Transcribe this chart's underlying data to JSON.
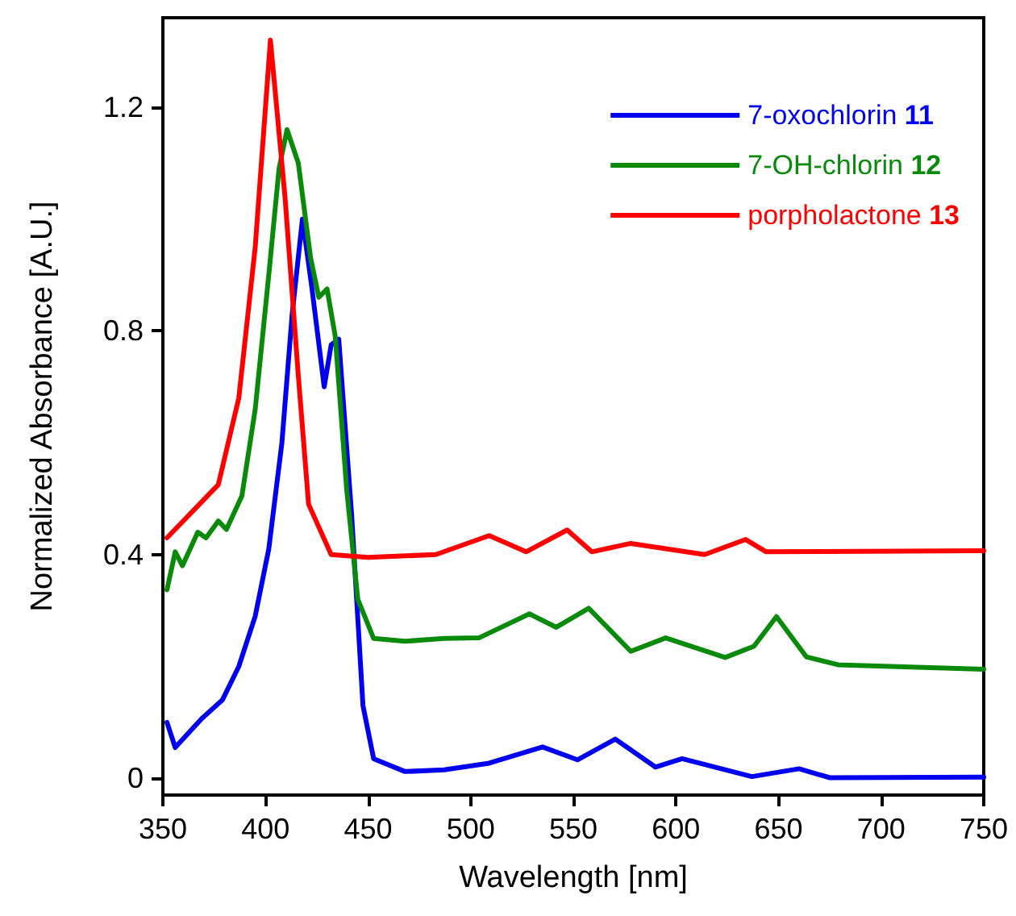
{
  "chart_data": {
    "type": "line",
    "xlabel": "Wavelength [nm]",
    "ylabel": "Normalized Absorbance [A.U.]",
    "xlim": [
      350,
      750
    ],
    "xticks": [
      350,
      400,
      450,
      500,
      550,
      600,
      650,
      700,
      750
    ],
    "ylim": [
      -0.03,
      1.36
    ],
    "yticks": [
      0,
      0.4,
      0.8,
      1.2
    ],
    "grid": false,
    "legend": "top right",
    "marker": "none",
    "line_style": "solid",
    "series": [
      {
        "name": "7-oxochlorin 11",
        "color": "#0000ee",
        "x": [
          352,
          356,
          369,
          379,
          387,
          395,
          401.6,
          408,
          413,
          418,
          422.5,
          428.6,
          432,
          435.7,
          442,
          447.5,
          452.7,
          468,
          487,
          509,
          535,
          552,
          570.5,
          590,
          603,
          637,
          660,
          675,
          750
        ],
        "values": [
          0.1,
          0.055,
          0.107,
          0.14,
          0.2,
          0.29,
          0.41,
          0.6,
          0.83,
          1.0,
          0.88,
          0.7,
          0.775,
          0.785,
          0.47,
          0.13,
          0.035,
          0.012,
          0.015,
          0.027,
          0.056,
          0.033,
          0.07,
          0.02,
          0.035,
          0.003,
          0.017,
          0.001,
          0.002
        ]
      },
      {
        "name": "7-OH-chlorin 12",
        "color": "#0a8a0a",
        "x": [
          352,
          356,
          359.5,
          367,
          371,
          377,
          381,
          388.5,
          395,
          401.6,
          406.6,
          410.5,
          416,
          422,
          426,
          430,
          434,
          439.6,
          445,
          452.7,
          468,
          487,
          504,
          528.6,
          541.7,
          557.5,
          578,
          595,
          624,
          638,
          649,
          663.6,
          679,
          750
        ],
        "values": [
          0.337,
          0.405,
          0.38,
          0.44,
          0.43,
          0.46,
          0.445,
          0.505,
          0.66,
          0.9,
          1.09,
          1.16,
          1.1,
          0.93,
          0.86,
          0.875,
          0.79,
          0.515,
          0.32,
          0.25,
          0.245,
          0.25,
          0.251,
          0.294,
          0.27,
          0.304,
          0.227,
          0.251,
          0.216,
          0.236,
          0.289,
          0.217,
          0.203,
          0.195
        ]
      },
      {
        "name": "porpholactone 13",
        "color": "#ff0000",
        "x": [
          352,
          377,
          387,
          395,
          402.4,
          409.5,
          416,
          421,
          432,
          450,
          483,
          509,
          527,
          547,
          559,
          578,
          614,
          634,
          644,
          750
        ],
        "values": [
          0.43,
          0.525,
          0.68,
          0.95,
          1.32,
          1.04,
          0.72,
          0.49,
          0.4,
          0.395,
          0.4,
          0.434,
          0.405,
          0.444,
          0.405,
          0.42,
          0.4,
          0.427,
          0.405,
          0.407
        ]
      }
    ]
  }
}
